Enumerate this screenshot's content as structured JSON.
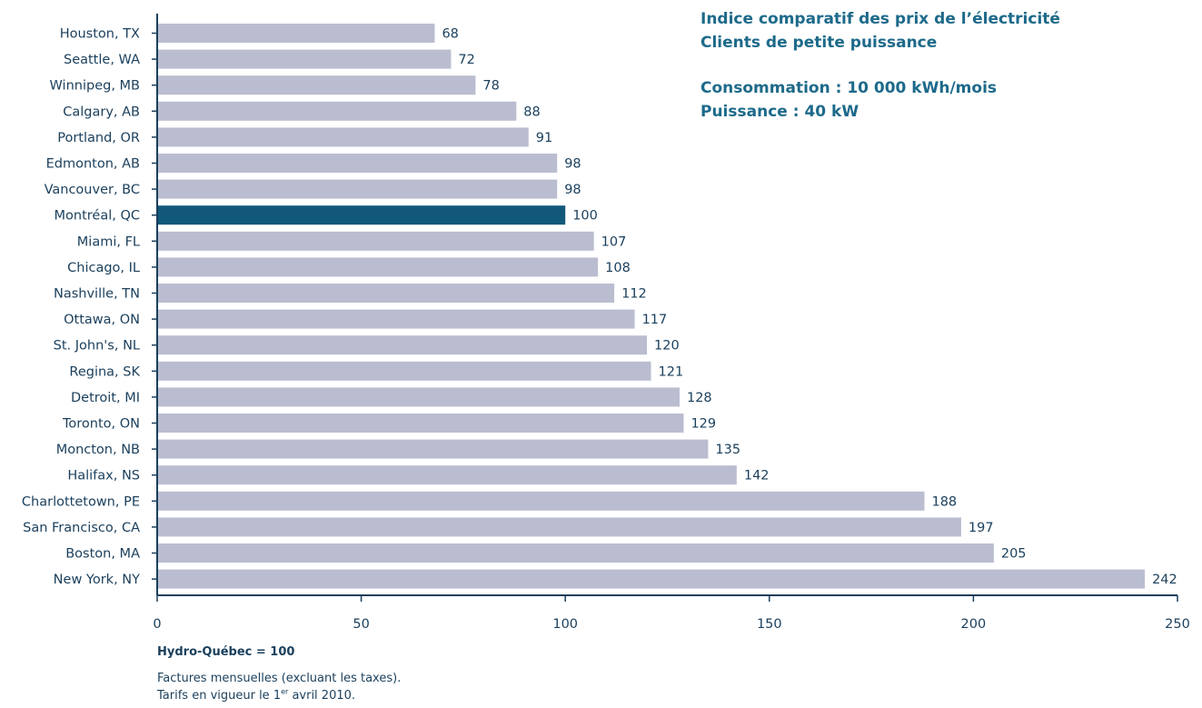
{
  "header": {
    "title_line1": "Indice comparatif des prix de l’électricité",
    "title_line2": "Clients de petite puissance",
    "spec_line1": "Consommation : 10 000 kWh/mois",
    "spec_line2": "Puissance : 40 kW"
  },
  "footer": {
    "reference": "Hydro-Québec = 100",
    "note1": "Factures mensuelles (excluant les taxes).",
    "note2_prefix": "Tarifs en vigueur le 1",
    "note2_sup": "er",
    "note2_suffix": " avril 2010."
  },
  "chart_data": {
    "type": "bar",
    "orientation": "horizontal",
    "categories": [
      "Houston, TX",
      "Seattle, WA",
      "Winnipeg, MB",
      "Calgary, AB",
      "Portland, OR",
      "Edmonton, AB",
      "Vancouver, BC",
      "Montréal, QC",
      "Miami, FL",
      "Chicago, IL",
      "Nashville, TN",
      "Ottawa, ON",
      "St. John's, NL",
      "Regina, SK",
      "Detroit, MI",
      "Toronto, ON",
      "Moncton, NB",
      "Halifax, NS",
      "Charlottetown, PE",
      "San Francisco, CA",
      "Boston, MA",
      "New York, NY"
    ],
    "values": [
      68,
      72,
      78,
      88,
      91,
      98,
      98,
      100,
      107,
      108,
      112,
      117,
      120,
      121,
      128,
      129,
      135,
      142,
      188,
      197,
      205,
      242
    ],
    "highlight": "Montréal, QC",
    "xlim": [
      0,
      250
    ],
    "xticks": [
      0,
      50,
      100,
      150,
      200,
      250
    ],
    "grid": false,
    "colors": {
      "bar": "#babdd0",
      "highlight": "#12587a",
      "axis": "#1a3f5c",
      "label": "#1a3f5c"
    }
  }
}
